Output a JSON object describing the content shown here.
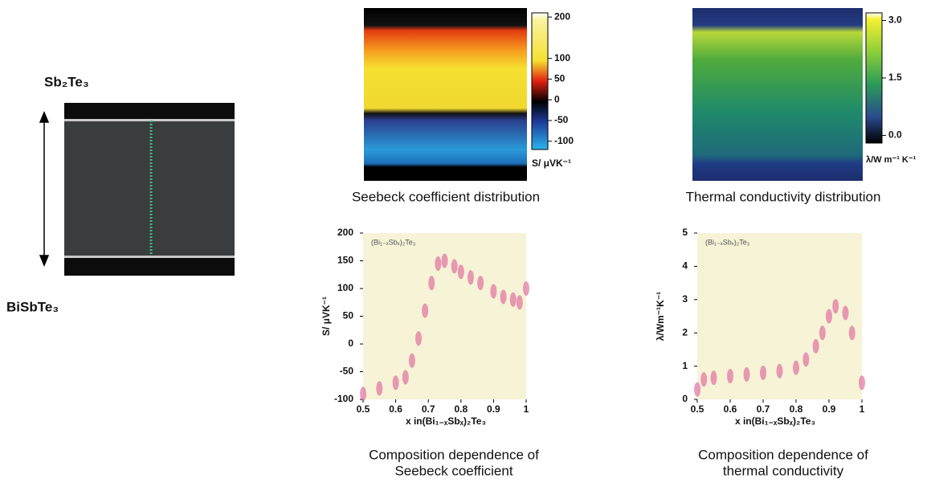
{
  "sample": {
    "top_label": "Sb₂Te₃",
    "bottom_label": "BiSbTe₃"
  },
  "maps": [
    {
      "caption": "Seebeck coefficient distribution",
      "colorbar_label": "S/ μVK⁻¹",
      "clim": [
        -120,
        210
      ],
      "colorbar_ticks": [
        200,
        100,
        50,
        0,
        -50,
        -100
      ]
    },
    {
      "caption": "Thermal conductivity distribution",
      "colorbar_label": "λ/W m⁻¹ K⁻¹",
      "clim": [
        -0.2,
        3.2
      ],
      "colorbar_ticks": [
        {
          "value": 3,
          "label": "3.0"
        },
        {
          "value": 1.5,
          "label": "1.5"
        },
        {
          "value": 0,
          "label": "0.0"
        }
      ]
    }
  ],
  "chart_data": [
    {
      "type": "scatter",
      "caption": [
        "Composition dependence of",
        "Seebeck coefficient"
      ],
      "annotation": "(Bi₁₋ₓSbₓ)₂Te₃",
      "xlabel": "x in(Bi₁₋ₓSbₓ)₂Te₃",
      "ylabel": "S/ μVK⁻¹",
      "color": "#de5c96",
      "background": "#f6f3d6",
      "x": [
        0.5,
        0.55,
        0.6,
        0.63,
        0.65,
        0.67,
        0.69,
        0.71,
        0.73,
        0.75,
        0.78,
        0.8,
        0.83,
        0.86,
        0.9,
        0.93,
        0.96,
        0.98,
        1.0
      ],
      "values": [
        -90,
        -80,
        -70,
        -60,
        -30,
        10,
        60,
        110,
        145,
        150,
        140,
        130,
        120,
        110,
        95,
        85,
        80,
        75,
        100
      ],
      "xlim": [
        0.5,
        1
      ],
      "xticks": [
        0.5,
        0.6,
        0.7,
        0.8,
        0.9,
        1
      ],
      "ylim": [
        -100,
        200
      ],
      "yticks": [
        -100,
        -50,
        0,
        50,
        100,
        150,
        200
      ]
    },
    {
      "type": "scatter",
      "caption": [
        "Composition dependence of",
        "thermal conductivity"
      ],
      "annotation": "(Bi₁₋ₓSbₓ)₂Te₃",
      "xlabel": "x in(Bi₁₋ₓSbₓ)₂Te₃",
      "ylabel": "λ/Wm⁻¹K⁻¹",
      "color": "#de5c96",
      "background": "#f6f3d6",
      "x": [
        0.5,
        0.52,
        0.55,
        0.6,
        0.65,
        0.7,
        0.75,
        0.8,
        0.83,
        0.86,
        0.88,
        0.9,
        0.92,
        0.95,
        0.97,
        1.0
      ],
      "values": [
        0.3,
        0.6,
        0.65,
        0.7,
        0.75,
        0.8,
        0.85,
        0.95,
        1.2,
        1.6,
        2.0,
        2.5,
        2.8,
        2.6,
        2.0,
        0.5
      ],
      "xlim": [
        0.5,
        1
      ],
      "xticks": [
        0.5,
        0.6,
        0.7,
        0.8,
        0.9,
        1
      ],
      "ylim": [
        0,
        5
      ],
      "yticks": [
        0,
        1,
        2,
        3,
        4,
        5
      ]
    }
  ]
}
